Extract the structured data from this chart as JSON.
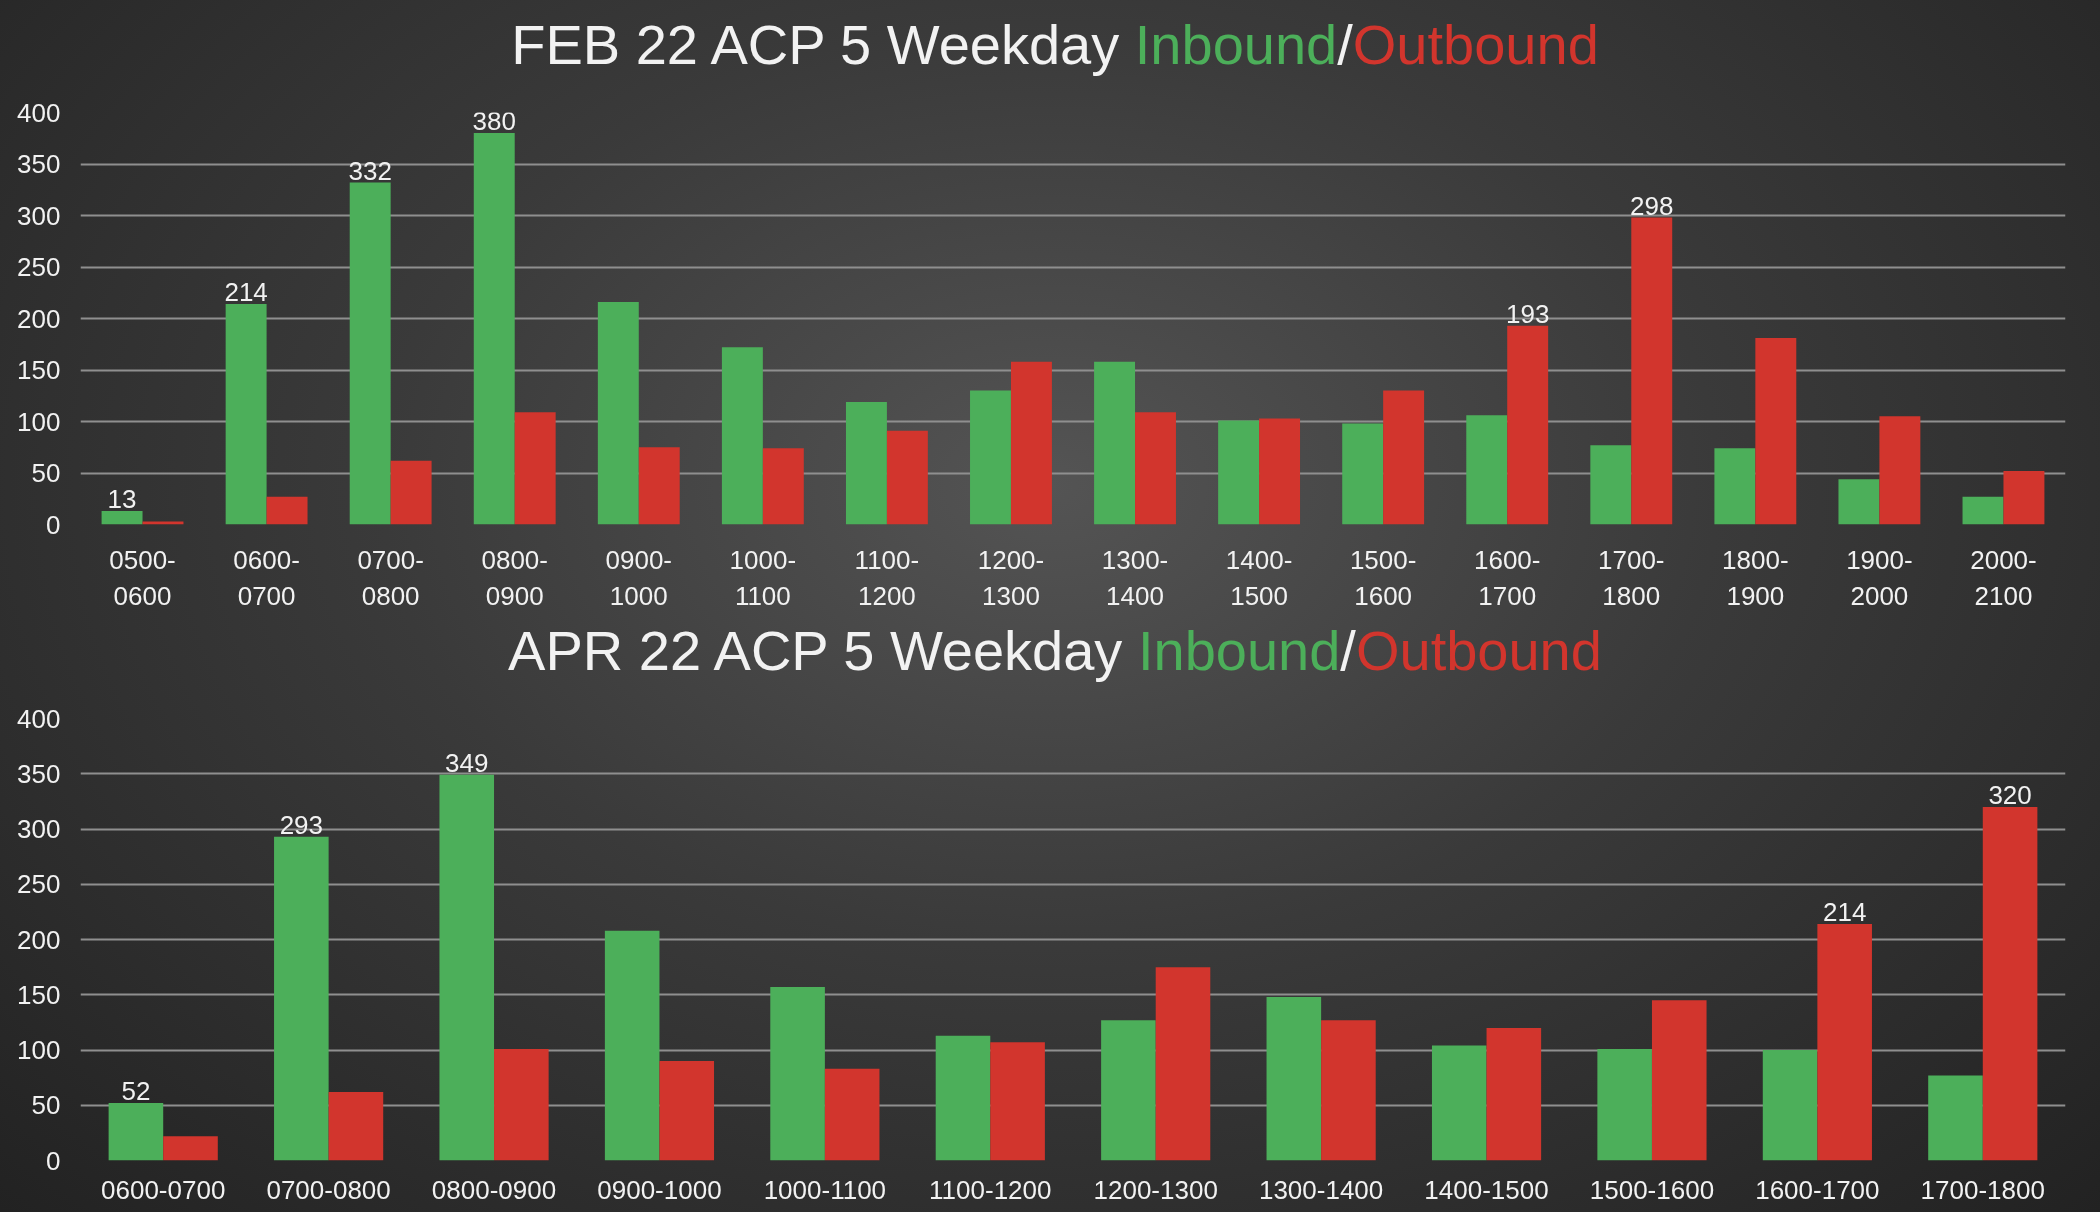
{
  "chart_data": [
    {
      "type": "bar",
      "title": "FEB 22 ACP 5 Weekday",
      "legend": "top",
      "annotations": [
        "/"
      ],
      "grid": "y",
      "ylim": [
        0,
        400
      ],
      "yticks": [
        0,
        50,
        100,
        150,
        200,
        250,
        300,
        350,
        400
      ],
      "categories": [
        "0500-0600",
        "0600-0700",
        "0700-0800",
        "0800-0900",
        "0900-1000",
        "1000-1100",
        "1100-1200",
        "1200-1300",
        "1300-1400",
        "1400-1500",
        "1500-1600",
        "1600-1700",
        "1700-1800",
        "1800-1900",
        "1900-2000",
        "2000-2100"
      ],
      "series": [
        {
          "name": "Inbound",
          "color": "#4caf5a",
          "values": [
            13,
            214,
            332,
            380,
            216,
            172,
            119,
            130,
            158,
            101,
            98,
            106,
            77,
            74,
            44,
            27
          ],
          "value_labels": [
            "13",
            "214",
            "332",
            "380",
            null,
            null,
            null,
            null,
            null,
            null,
            null,
            null,
            null,
            null,
            null,
            null
          ]
        },
        {
          "name": "Outbound",
          "color": "#d2352d",
          "values": [
            3,
            27,
            62,
            109,
            75,
            74,
            91,
            158,
            109,
            103,
            130,
            193,
            298,
            181,
            105,
            52
          ],
          "value_labels": [
            null,
            null,
            null,
            null,
            null,
            null,
            null,
            null,
            null,
            null,
            null,
            "193",
            "298",
            null,
            null,
            null
          ]
        }
      ]
    },
    {
      "type": "bar",
      "title": "APR 22 ACP 5 Weekday",
      "legend": "top",
      "annotations": [
        "/"
      ],
      "grid": "y",
      "ylim": [
        0,
        400
      ],
      "yticks": [
        0,
        50,
        100,
        150,
        200,
        250,
        300,
        350,
        400
      ],
      "categories": [
        "0600-0700",
        "0700-0800",
        "0800-0900",
        "0900-1000",
        "1000-1100",
        "1100-1200",
        "1200-1300",
        "1300-1400",
        "1400-1500",
        "1500-1600",
        "1600-1700",
        "1700-1800"
      ],
      "series": [
        {
          "name": "Inbound",
          "color": "#4caf5a",
          "values": [
            52,
            293,
            349,
            208,
            157,
            113,
            127,
            148,
            104,
            101,
            100,
            77
          ],
          "value_labels": [
            "52",
            "293",
            "349",
            null,
            null,
            null,
            null,
            null,
            null,
            null,
            null,
            null
          ]
        },
        {
          "name": "Outbound",
          "color": "#d2352d",
          "values": [
            22,
            62,
            101,
            90,
            83,
            107,
            175,
            127,
            120,
            145,
            214,
            320
          ],
          "value_labels": [
            null,
            null,
            null,
            null,
            null,
            null,
            null,
            null,
            null,
            null,
            "214",
            "320"
          ]
        }
      ]
    }
  ]
}
